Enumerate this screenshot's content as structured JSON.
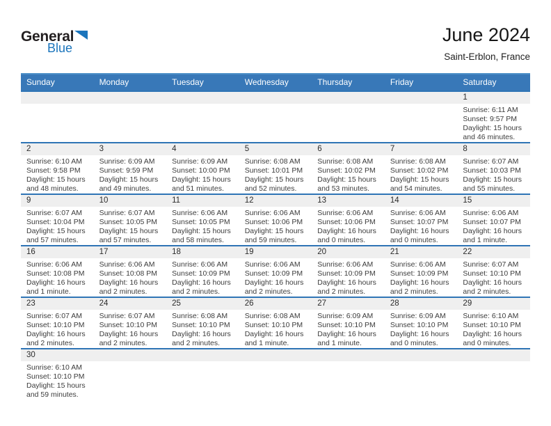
{
  "logo": {
    "general": "General",
    "blue": "Blue"
  },
  "header": {
    "title": "June 2024",
    "subtitle": "Saint-Erblon, France"
  },
  "weekdays": [
    "Sunday",
    "Monday",
    "Tuesday",
    "Wednesday",
    "Thursday",
    "Friday",
    "Saturday"
  ],
  "colors": {
    "header-blue": "#3878B8",
    "header-top-edge": "#4E90C8",
    "separator-blue": "#2E74B5",
    "band-gray": "#EFEFEF",
    "logo-blue": "#1B75BC"
  },
  "weeks": [
    [
      null,
      null,
      null,
      null,
      null,
      null,
      {
        "day": "1",
        "sunrise": "Sunrise: 6:11 AM",
        "sunset": "Sunset: 9:57 PM",
        "daylight1": "Daylight: 15 hours",
        "daylight2": "and 46 minutes."
      }
    ],
    [
      {
        "day": "2",
        "sunrise": "Sunrise: 6:10 AM",
        "sunset": "Sunset: 9:58 PM",
        "daylight1": "Daylight: 15 hours",
        "daylight2": "and 48 minutes."
      },
      {
        "day": "3",
        "sunrise": "Sunrise: 6:09 AM",
        "sunset": "Sunset: 9:59 PM",
        "daylight1": "Daylight: 15 hours",
        "daylight2": "and 49 minutes."
      },
      {
        "day": "4",
        "sunrise": "Sunrise: 6:09 AM",
        "sunset": "Sunset: 10:00 PM",
        "daylight1": "Daylight: 15 hours",
        "daylight2": "and 51 minutes."
      },
      {
        "day": "5",
        "sunrise": "Sunrise: 6:08 AM",
        "sunset": "Sunset: 10:01 PM",
        "daylight1": "Daylight: 15 hours",
        "daylight2": "and 52 minutes."
      },
      {
        "day": "6",
        "sunrise": "Sunrise: 6:08 AM",
        "sunset": "Sunset: 10:02 PM",
        "daylight1": "Daylight: 15 hours",
        "daylight2": "and 53 minutes."
      },
      {
        "day": "7",
        "sunrise": "Sunrise: 6:08 AM",
        "sunset": "Sunset: 10:02 PM",
        "daylight1": "Daylight: 15 hours",
        "daylight2": "and 54 minutes."
      },
      {
        "day": "8",
        "sunrise": "Sunrise: 6:07 AM",
        "sunset": "Sunset: 10:03 PM",
        "daylight1": "Daylight: 15 hours",
        "daylight2": "and 55 minutes."
      }
    ],
    [
      {
        "day": "9",
        "sunrise": "Sunrise: 6:07 AM",
        "sunset": "Sunset: 10:04 PM",
        "daylight1": "Daylight: 15 hours",
        "daylight2": "and 57 minutes."
      },
      {
        "day": "10",
        "sunrise": "Sunrise: 6:07 AM",
        "sunset": "Sunset: 10:05 PM",
        "daylight1": "Daylight: 15 hours",
        "daylight2": "and 57 minutes."
      },
      {
        "day": "11",
        "sunrise": "Sunrise: 6:06 AM",
        "sunset": "Sunset: 10:05 PM",
        "daylight1": "Daylight: 15 hours",
        "daylight2": "and 58 minutes."
      },
      {
        "day": "12",
        "sunrise": "Sunrise: 6:06 AM",
        "sunset": "Sunset: 10:06 PM",
        "daylight1": "Daylight: 15 hours",
        "daylight2": "and 59 minutes."
      },
      {
        "day": "13",
        "sunrise": "Sunrise: 6:06 AM",
        "sunset": "Sunset: 10:06 PM",
        "daylight1": "Daylight: 16 hours",
        "daylight2": "and 0 minutes."
      },
      {
        "day": "14",
        "sunrise": "Sunrise: 6:06 AM",
        "sunset": "Sunset: 10:07 PM",
        "daylight1": "Daylight: 16 hours",
        "daylight2": "and 0 minutes."
      },
      {
        "day": "15",
        "sunrise": "Sunrise: 6:06 AM",
        "sunset": "Sunset: 10:07 PM",
        "daylight1": "Daylight: 16 hours",
        "daylight2": "and 1 minute."
      }
    ],
    [
      {
        "day": "16",
        "sunrise": "Sunrise: 6:06 AM",
        "sunset": "Sunset: 10:08 PM",
        "daylight1": "Daylight: 16 hours",
        "daylight2": "and 1 minute."
      },
      {
        "day": "17",
        "sunrise": "Sunrise: 6:06 AM",
        "sunset": "Sunset: 10:08 PM",
        "daylight1": "Daylight: 16 hours",
        "daylight2": "and 2 minutes."
      },
      {
        "day": "18",
        "sunrise": "Sunrise: 6:06 AM",
        "sunset": "Sunset: 10:09 PM",
        "daylight1": "Daylight: 16 hours",
        "daylight2": "and 2 minutes."
      },
      {
        "day": "19",
        "sunrise": "Sunrise: 6:06 AM",
        "sunset": "Sunset: 10:09 PM",
        "daylight1": "Daylight: 16 hours",
        "daylight2": "and 2 minutes."
      },
      {
        "day": "20",
        "sunrise": "Sunrise: 6:06 AM",
        "sunset": "Sunset: 10:09 PM",
        "daylight1": "Daylight: 16 hours",
        "daylight2": "and 2 minutes."
      },
      {
        "day": "21",
        "sunrise": "Sunrise: 6:06 AM",
        "sunset": "Sunset: 10:09 PM",
        "daylight1": "Daylight: 16 hours",
        "daylight2": "and 2 minutes."
      },
      {
        "day": "22",
        "sunrise": "Sunrise: 6:07 AM",
        "sunset": "Sunset: 10:10 PM",
        "daylight1": "Daylight: 16 hours",
        "daylight2": "and 2 minutes."
      }
    ],
    [
      {
        "day": "23",
        "sunrise": "Sunrise: 6:07 AM",
        "sunset": "Sunset: 10:10 PM",
        "daylight1": "Daylight: 16 hours",
        "daylight2": "and 2 minutes."
      },
      {
        "day": "24",
        "sunrise": "Sunrise: 6:07 AM",
        "sunset": "Sunset: 10:10 PM",
        "daylight1": "Daylight: 16 hours",
        "daylight2": "and 2 minutes."
      },
      {
        "day": "25",
        "sunrise": "Sunrise: 6:08 AM",
        "sunset": "Sunset: 10:10 PM",
        "daylight1": "Daylight: 16 hours",
        "daylight2": "and 2 minutes."
      },
      {
        "day": "26",
        "sunrise": "Sunrise: 6:08 AM",
        "sunset": "Sunset: 10:10 PM",
        "daylight1": "Daylight: 16 hours",
        "daylight2": "and 1 minute."
      },
      {
        "day": "27",
        "sunrise": "Sunrise: 6:09 AM",
        "sunset": "Sunset: 10:10 PM",
        "daylight1": "Daylight: 16 hours",
        "daylight2": "and 1 minute."
      },
      {
        "day": "28",
        "sunrise": "Sunrise: 6:09 AM",
        "sunset": "Sunset: 10:10 PM",
        "daylight1": "Daylight: 16 hours",
        "daylight2": "and 0 minutes."
      },
      {
        "day": "29",
        "sunrise": "Sunrise: 6:10 AM",
        "sunset": "Sunset: 10:10 PM",
        "daylight1": "Daylight: 16 hours",
        "daylight2": "and 0 minutes."
      }
    ],
    [
      {
        "day": "30",
        "sunrise": "Sunrise: 6:10 AM",
        "sunset": "Sunset: 10:10 PM",
        "daylight1": "Daylight: 15 hours",
        "daylight2": "and 59 minutes."
      },
      null,
      null,
      null,
      null,
      null,
      null
    ]
  ]
}
